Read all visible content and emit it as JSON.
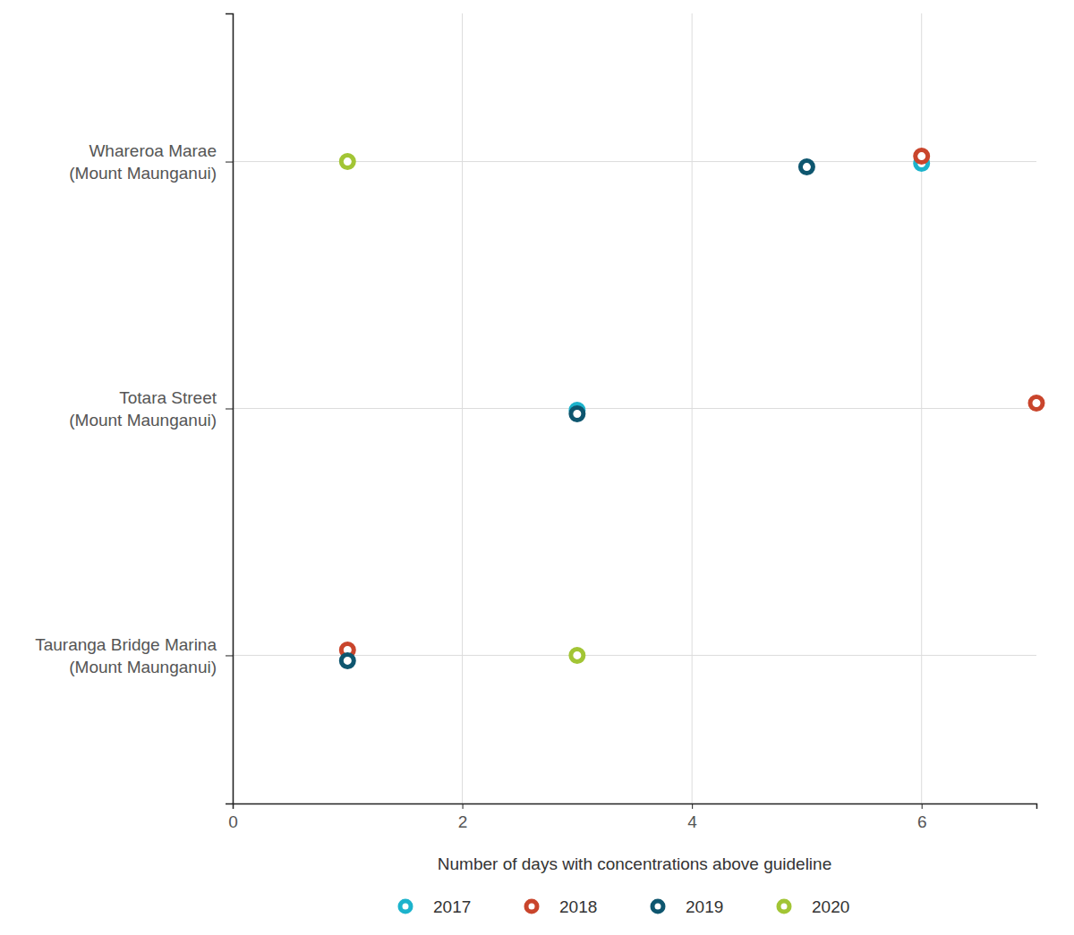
{
  "chart_data": {
    "type": "dot",
    "orientation": "horizontal",
    "x_label": "Number of days with concentrations above guideline",
    "categories": [
      "Whareroa Marae\n(Mount Maunganui)",
      "Totara Street\n(Mount Maunganui)",
      "Tauranga Bridge Marina\n(Mount Maunganui)"
    ],
    "series": [
      {
        "name": "2017",
        "color": "#1cb3cc",
        "marker": "circle",
        "values": [
          6,
          3,
          null
        ]
      },
      {
        "name": "2018",
        "color": "#c9452c",
        "marker": "circle",
        "values": [
          6,
          7,
          1
        ]
      },
      {
        "name": "2019",
        "color": "#0e566f",
        "marker": "circle",
        "values": [
          5,
          3,
          1
        ]
      },
      {
        "name": "2020",
        "color": "#a2c535",
        "marker": "circle",
        "values": [
          1,
          null,
          3
        ]
      }
    ],
    "xlim": [
      0,
      7
    ],
    "xticks": [
      0,
      2,
      4,
      6
    ],
    "grid": true,
    "legend": "bottom"
  }
}
